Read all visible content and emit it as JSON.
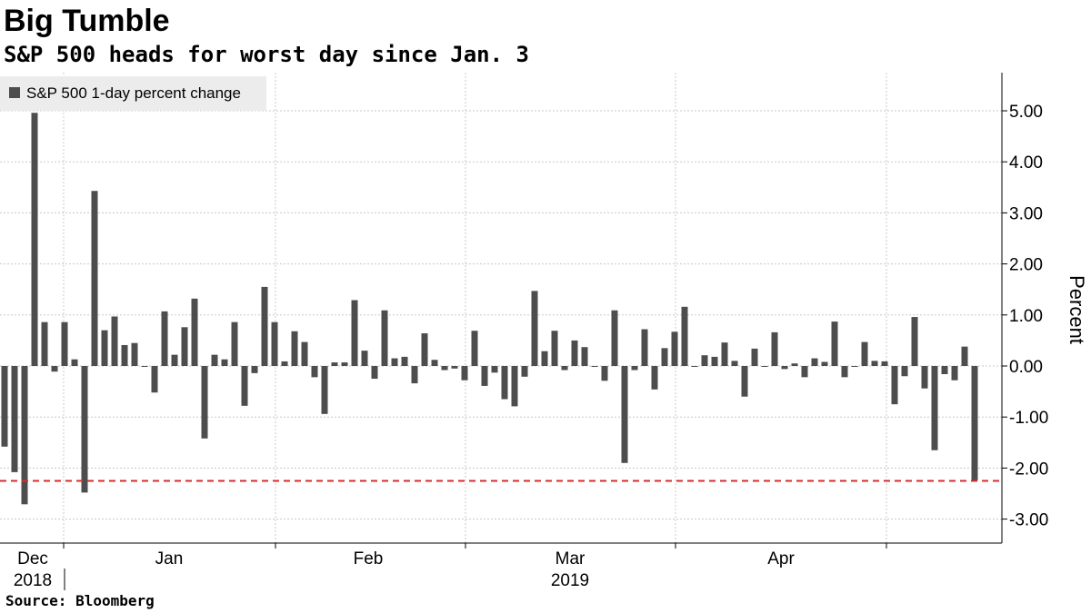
{
  "header": {
    "title": "Big Tumble",
    "subtitle": "S&P 500 heads for worst day since Jan. 3"
  },
  "footer": {
    "source": "Source: Bloomberg"
  },
  "colors": {
    "bar": "#4d4d4d",
    "reference_line": "#d62d2d",
    "grid": "#c8c8c8",
    "legend_bg": "#ececec"
  },
  "chart_data": {
    "type": "bar",
    "title": "Big Tumble",
    "subtitle": "S&P 500 heads for worst day since Jan. 3",
    "ylabel": "Percent",
    "ylim": [
      -3.5,
      5.8
    ],
    "y_ticks": [
      5.0,
      4.0,
      3.0,
      2.0,
      1.0,
      0.0,
      -1.0,
      -2.0,
      -3.0
    ],
    "y_tick_labels": [
      "5.00",
      "4.00",
      "3.00",
      "2.00",
      "1.00",
      "0.00",
      "-1.00",
      "-2.00",
      "-3.00"
    ],
    "x_tick_labels": [
      {
        "label": "Dec",
        "year": "2018"
      },
      {
        "label": "Jan",
        "year": ""
      },
      {
        "label": "Feb",
        "year": ""
      },
      {
        "label": "Mar",
        "year": "2019"
      },
      {
        "label": "Apr",
        "year": ""
      }
    ],
    "grid": true,
    "legend": {
      "position": "top-left",
      "entries": [
        "S&P 500 1-day percent change"
      ]
    },
    "reference_line": {
      "value": -2.25,
      "style": "dashed"
    },
    "series": [
      {
        "name": "S&P 500 1-day percent change",
        "values": [
          -1.58,
          -2.08,
          -2.71,
          4.96,
          0.86,
          -0.11,
          0.86,
          0.13,
          -2.48,
          3.43,
          0.7,
          0.97,
          0.41,
          0.45,
          0.0,
          -0.52,
          1.07,
          0.22,
          0.76,
          1.32,
          -1.42,
          0.22,
          0.13,
          0.86,
          -0.78,
          -0.14,
          1.55,
          0.86,
          0.09,
          0.68,
          0.47,
          -0.22,
          -0.94,
          0.07,
          0.07,
          1.29,
          0.3,
          -0.25,
          1.09,
          0.15,
          0.18,
          -0.34,
          0.64,
          0.12,
          -0.08,
          -0.05,
          -0.28,
          0.69,
          -0.39,
          -0.13,
          -0.65,
          -0.79,
          -0.21,
          1.47,
          0.29,
          0.69,
          -0.08,
          0.5,
          0.37,
          0.0,
          -0.29,
          1.09,
          -1.9,
          -0.08,
          0.72,
          -0.46,
          0.35,
          0.67,
          1.16,
          0.0,
          0.21,
          0.18,
          0.46,
          0.1,
          -0.6,
          0.34,
          0.0,
          0.66,
          -0.06,
          0.05,
          -0.22,
          0.15,
          0.08,
          0.87,
          -0.22,
          0.0,
          0.47,
          0.1,
          0.09,
          -0.75,
          -0.2,
          0.96,
          -0.44,
          -1.65,
          -0.16,
          -0.28,
          0.38,
          -2.24
        ]
      }
    ]
  }
}
